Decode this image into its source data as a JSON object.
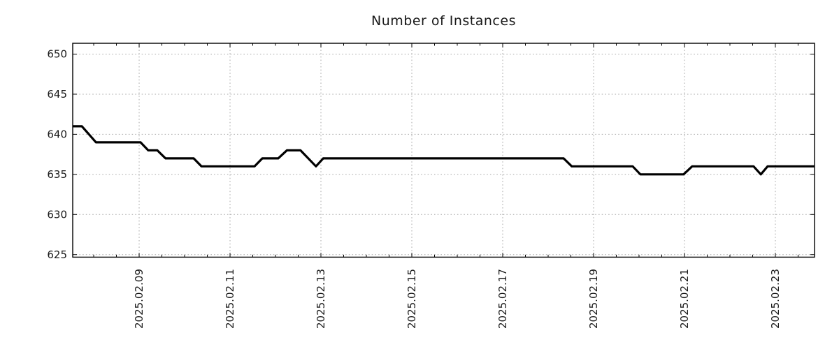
{
  "chart_data": {
    "type": "line",
    "title": "Number of Instances",
    "background_color": "#ffffff",
    "frame_color": "#000000",
    "text_color": "#1a1a1a",
    "grid": {
      "show": true,
      "style": "dotted",
      "color": "#a8a8a8"
    },
    "series": [
      {
        "name": "instances",
        "color": "#000000",
        "stroke_width": 3.2,
        "points": [
          [
            7.538,
            641
          ],
          [
            7.74,
            641
          ],
          [
            8.05,
            639
          ],
          [
            9.03,
            639
          ],
          [
            9.2,
            638
          ],
          [
            9.4,
            638
          ],
          [
            9.58,
            637
          ],
          [
            10.2,
            637
          ],
          [
            10.37,
            636
          ],
          [
            11.54,
            636
          ],
          [
            11.71,
            637
          ],
          [
            12.06,
            637
          ],
          [
            12.25,
            638
          ],
          [
            12.55,
            638
          ],
          [
            12.89,
            636
          ],
          [
            13.05,
            637
          ],
          [
            18.34,
            637
          ],
          [
            18.52,
            636
          ],
          [
            19.86,
            636
          ],
          [
            20.03,
            635
          ],
          [
            20.98,
            635
          ],
          [
            21.17,
            636
          ],
          [
            22.52,
            636
          ],
          [
            22.68,
            635
          ],
          [
            22.83,
            636
          ],
          [
            23.862,
            636
          ]
        ]
      }
    ],
    "x_axis": {
      "unit": "day of February 2025",
      "xlim": [
        7.538,
        23.862
      ],
      "minor_tick_step": 0.5,
      "label_rotation_deg": -90,
      "major_ticks": [
        {
          "pos": 9,
          "label": "2025.02.09"
        },
        {
          "pos": 11,
          "label": "2025.02.11"
        },
        {
          "pos": 13,
          "label": "2025.02.13"
        },
        {
          "pos": 15,
          "label": "2025.02.15"
        },
        {
          "pos": 17,
          "label": "2025.02.17"
        },
        {
          "pos": 19,
          "label": "2025.02.19"
        },
        {
          "pos": 21,
          "label": "2025.02.21"
        },
        {
          "pos": 23,
          "label": "2025.02.23"
        }
      ]
    },
    "y_axis": {
      "ylim": [
        624.68,
        651.35
      ],
      "ticks": [
        625,
        630,
        635,
        640,
        645,
        650
      ]
    }
  }
}
